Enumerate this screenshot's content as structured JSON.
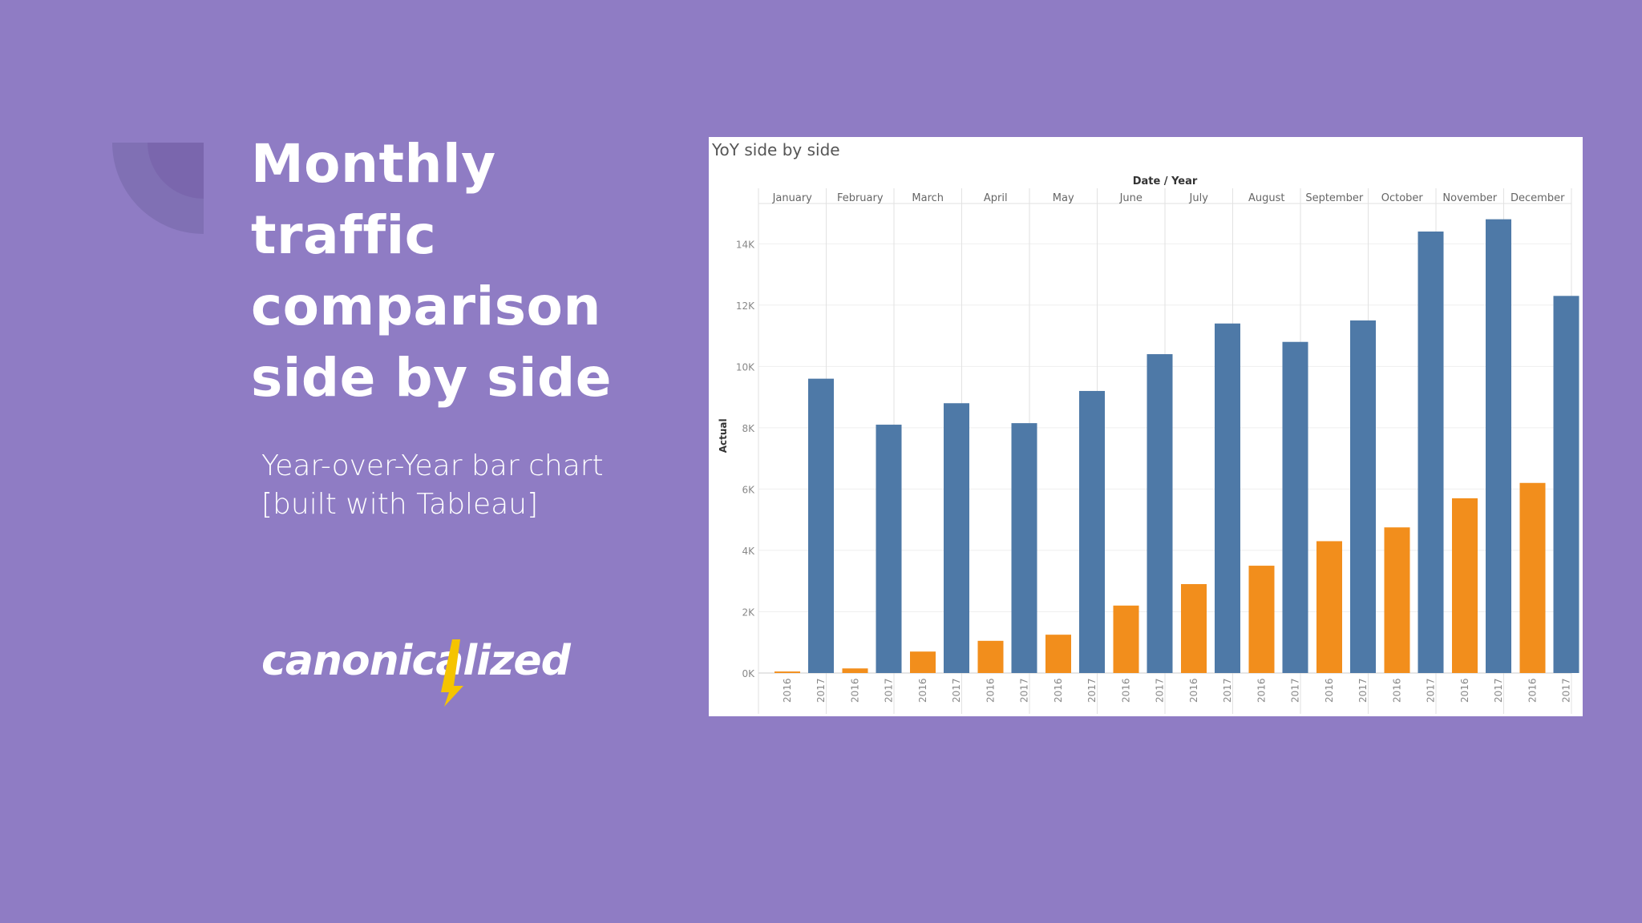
{
  "slide": {
    "title_lines": [
      "Monthly traffic",
      "comparison",
      "side by side"
    ],
    "subtitle_lines": [
      "Year-over-Year bar chart",
      "[built with Tableau]"
    ],
    "logo_text": "canonicalized",
    "colors": {
      "background": "#8f7cc4",
      "accent": "#f5c400"
    }
  },
  "chart_data": {
    "type": "bar",
    "title": "YoY side by side",
    "header_label": "Date / Year",
    "ylabel": "Actual",
    "ylim": [
      0,
      15000
    ],
    "yticks": [
      0,
      2000,
      4000,
      6000,
      8000,
      10000,
      12000,
      14000
    ],
    "ytick_labels": [
      "0K",
      "2K",
      "4K",
      "6K",
      "8K",
      "10K",
      "12K",
      "14K"
    ],
    "categories": [
      "January",
      "February",
      "March",
      "April",
      "May",
      "June",
      "July",
      "August",
      "September",
      "October",
      "November",
      "December"
    ],
    "sub_categories": [
      "2016",
      "2017"
    ],
    "series": [
      {
        "name": "2016",
        "color": "#f28e1c",
        "values": [
          50,
          150,
          700,
          1050,
          1250,
          2200,
          2900,
          3500,
          4300,
          4750,
          5700,
          6200
        ]
      },
      {
        "name": "2017",
        "color": "#4e79a7",
        "values": [
          9600,
          8100,
          8800,
          8150,
          9200,
          10400,
          11400,
          10800,
          11500,
          14400,
          14800,
          12300
        ]
      }
    ]
  }
}
